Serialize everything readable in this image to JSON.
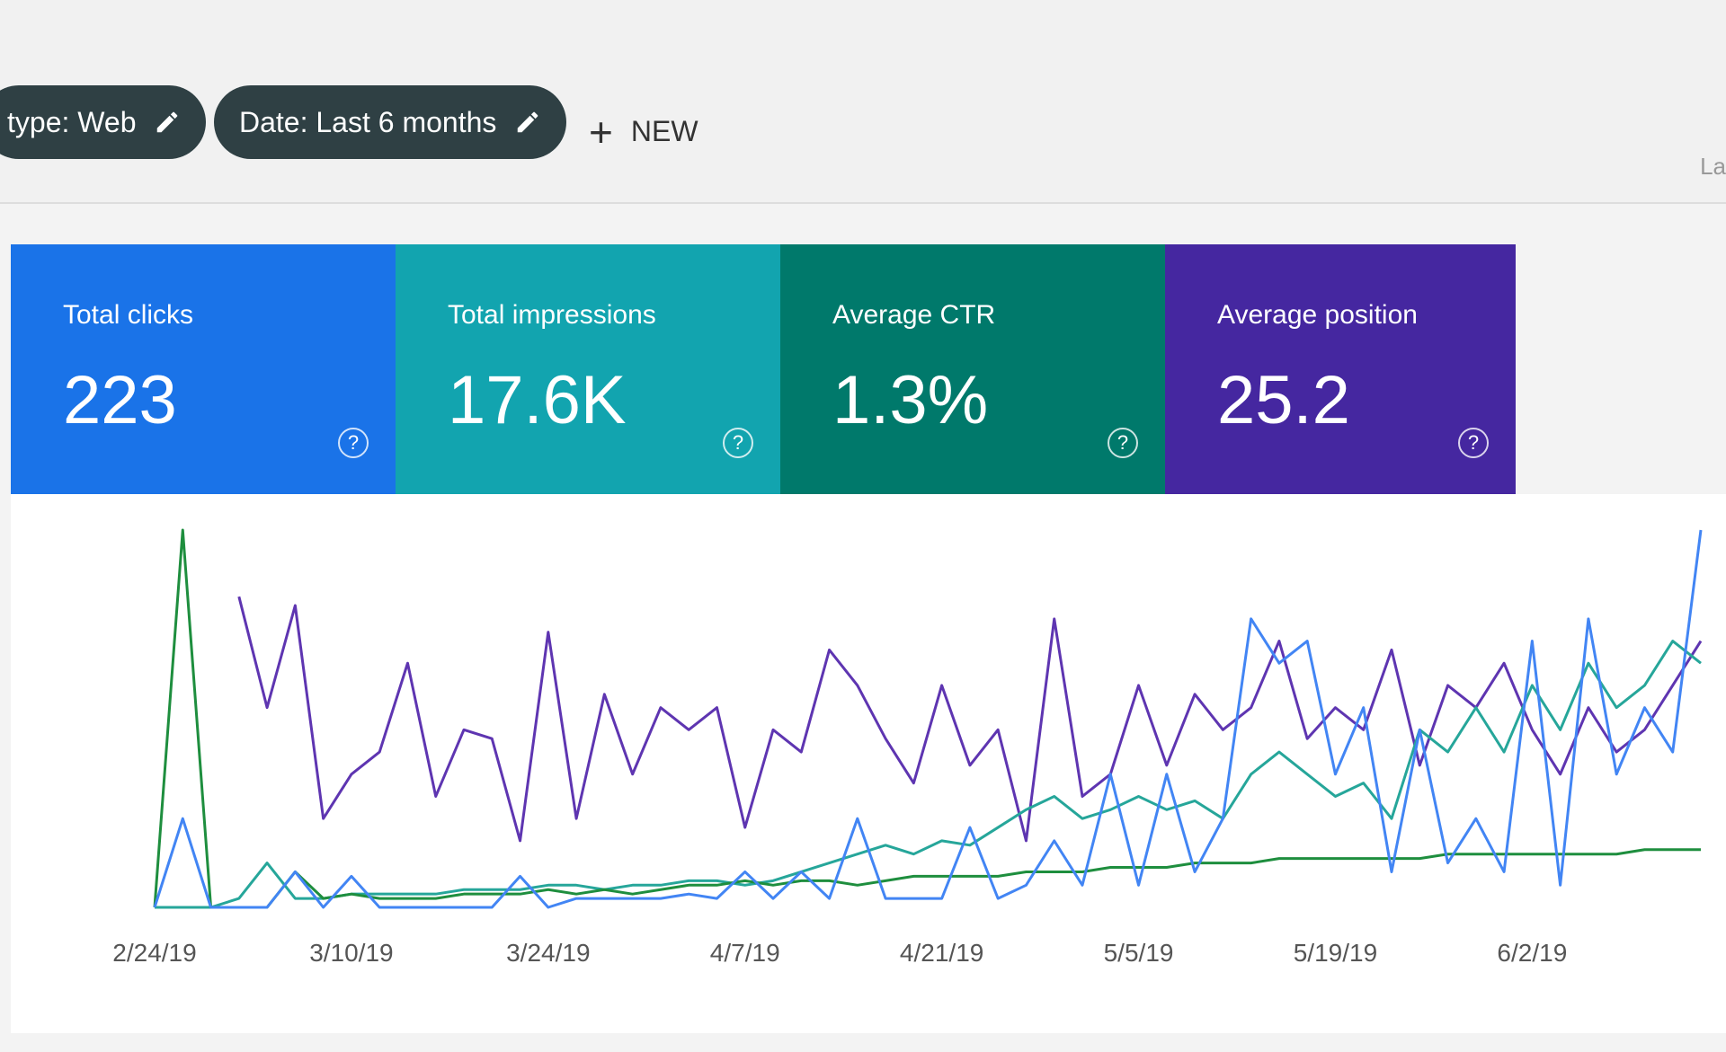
{
  "filters": {
    "type_chip": "type: Web",
    "date_chip": "Date: Last 6 months",
    "new_button": "NEW",
    "right_cut": "La"
  },
  "cards": [
    {
      "label": "Total clicks",
      "value": "223",
      "color": "#1a73e8"
    },
    {
      "label": "Total impressions",
      "value": "17.6K",
      "color": "#12a4af"
    },
    {
      "label": "Average CTR",
      "value": "1.3%",
      "color": "#00796b"
    },
    {
      "label": "Average position",
      "value": "25.2",
      "color": "#4527a0"
    }
  ],
  "chart_data": {
    "type": "line",
    "categories": [
      "2/24/19",
      null,
      null,
      null,
      null,
      null,
      null,
      "3/10/19",
      null,
      null,
      null,
      null,
      null,
      null,
      "3/24/19",
      null,
      null,
      null,
      null,
      null,
      null,
      "4/7/19",
      null,
      null,
      null,
      null,
      null,
      null,
      "4/21/19",
      null,
      null,
      null,
      null,
      null,
      null,
      "5/5/19",
      null,
      null,
      null,
      null,
      null,
      null,
      "5/19/19",
      null,
      null,
      null,
      null,
      null,
      null,
      "6/2/19",
      null,
      null,
      null,
      null,
      null,
      null
    ],
    "series": [
      {
        "color": "#5e35b1",
        "values": [
          null,
          null,
          null,
          70,
          45,
          68,
          20,
          30,
          35,
          55,
          25,
          40,
          38,
          15,
          62,
          20,
          48,
          30,
          45,
          40,
          45,
          18,
          40,
          35,
          58,
          50,
          38,
          28,
          50,
          32,
          40,
          15,
          65,
          25,
          30,
          50,
          32,
          48,
          40,
          45,
          60,
          38,
          45,
          40,
          58,
          32,
          50,
          45,
          55,
          40,
          30,
          45,
          35,
          40,
          50,
          60
        ]
      },
      {
        "color": "#26a69a",
        "values": [
          0,
          0,
          0,
          2,
          10,
          2,
          2,
          3,
          3,
          3,
          3,
          4,
          4,
          4,
          5,
          5,
          4,
          5,
          5,
          6,
          6,
          5,
          6,
          8,
          10,
          12,
          14,
          12,
          15,
          14,
          18,
          22,
          25,
          20,
          22,
          25,
          22,
          24,
          20,
          30,
          35,
          30,
          25,
          28,
          20,
          40,
          35,
          45,
          35,
          50,
          40,
          55,
          45,
          50,
          60,
          55
        ]
      },
      {
        "color": "#1e8e3e",
        "values": [
          0,
          85,
          0,
          0,
          0,
          8,
          2,
          3,
          2,
          2,
          2,
          3,
          3,
          3,
          4,
          3,
          4,
          3,
          4,
          5,
          5,
          6,
          5,
          6,
          6,
          5,
          6,
          7,
          7,
          7,
          7,
          8,
          8,
          8,
          9,
          9,
          9,
          10,
          10,
          10,
          11,
          11,
          11,
          11,
          11,
          11,
          12,
          12,
          12,
          12,
          12,
          12,
          12,
          13,
          13,
          13
        ]
      },
      {
        "color": "#4285f4",
        "values": [
          0,
          20,
          0,
          0,
          0,
          8,
          0,
          7,
          0,
          0,
          0,
          0,
          0,
          7,
          0,
          2,
          2,
          2,
          2,
          3,
          2,
          8,
          2,
          8,
          2,
          20,
          2,
          2,
          2,
          18,
          2,
          5,
          15,
          5,
          30,
          5,
          30,
          8,
          20,
          65,
          55,
          60,
          30,
          45,
          8,
          40,
          10,
          20,
          8,
          60,
          5,
          65,
          30,
          45,
          35,
          85
        ]
      }
    ]
  }
}
